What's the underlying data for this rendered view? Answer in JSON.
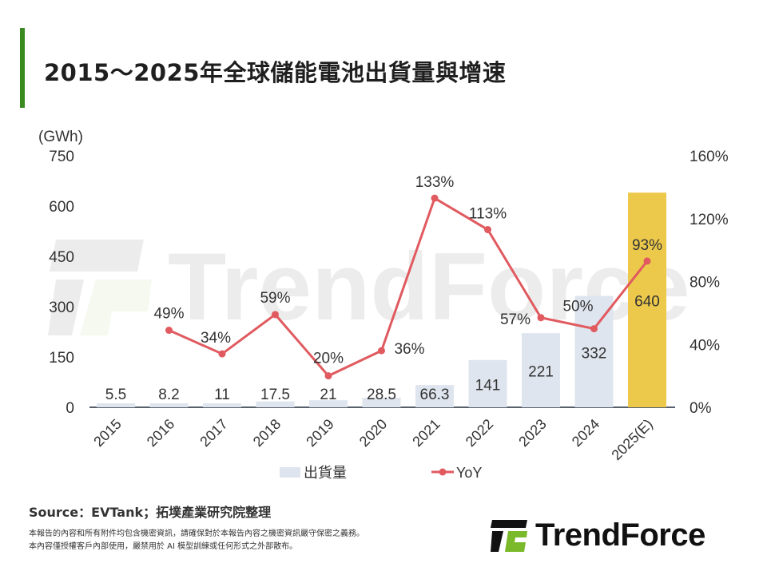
{
  "title": "2015～2025年全球儲能電池出貨量與增速",
  "source": "Source：EVTank；拓墣產業研究院整理",
  "disclaimer": [
    "本報告的內容和所有附件均包含機密資訊，請確保對於本報告內容之機密資訊嚴守保密之義務。",
    "本內容僅授權客戶內部使用，嚴禁用於 AI 模型訓練或任何形式之外部散布。"
  ],
  "logo_text": "TrendForce",
  "watermark": "TrendForce",
  "colors": {
    "bar": "#dfe5ee",
    "bar_estimate": "#ecc94b",
    "line": "#e05a5f",
    "accent": "#3a8a1f",
    "logo_green": "#7ab929"
  },
  "chart_data": {
    "type": "bar+line",
    "categories": [
      "2015",
      "2016",
      "2017",
      "2018",
      "2019",
      "2020",
      "2021",
      "2022",
      "2023",
      "2024",
      "2025(E)"
    ],
    "series": [
      {
        "name": "出貨量",
        "type": "bar",
        "axis": "left",
        "values": [
          5.5,
          8.2,
          11,
          17.5,
          21,
          28.5,
          66.3,
          141,
          221,
          332,
          640
        ],
        "labels": [
          "5.5",
          "8.2",
          "11",
          "17.5",
          "21",
          "28.5",
          "66.3",
          "141",
          "221",
          "332",
          "640"
        ]
      },
      {
        "name": "YoY",
        "type": "line",
        "axis": "right",
        "values": [
          null,
          49,
          34,
          59,
          20,
          36,
          133,
          113,
          57,
          50,
          93
        ],
        "labels": [
          "",
          "49%",
          "34%",
          "59%",
          "20%",
          "36%",
          "133%",
          "113%",
          "57%",
          "50%",
          "93%"
        ]
      }
    ],
    "left_axis": {
      "unit": "(GWh)",
      "range": [
        0,
        750
      ],
      "ticks": [
        "0",
        "150",
        "300",
        "450",
        "600",
        "750"
      ]
    },
    "right_axis": {
      "range": [
        0,
        160
      ],
      "ticks": [
        "0%",
        "40%",
        "80%",
        "120%",
        "160%"
      ]
    },
    "legend_position": "bottom"
  }
}
